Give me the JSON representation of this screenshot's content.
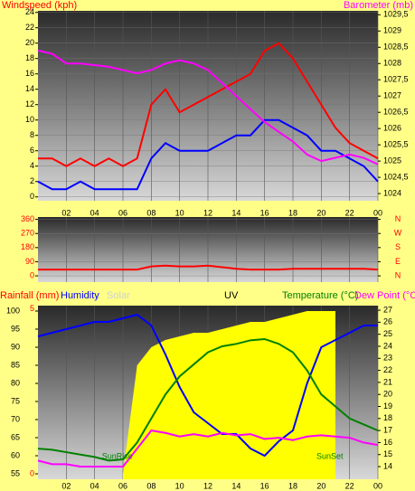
{
  "chart_data": [
    {
      "type": "line",
      "ylabel": "Windspeed (kph)",
      "y2label": "Barometer (mb)",
      "x": [
        0,
        1,
        2,
        3,
        4,
        5,
        6,
        7,
        8,
        9,
        10,
        11,
        12,
        13,
        14,
        15,
        16,
        17,
        18,
        19,
        20,
        21,
        22,
        23,
        24
      ],
      "xlim": [
        0,
        24
      ],
      "xticks": [
        {
          "value": 2,
          "label": "02"
        },
        {
          "value": 4,
          "label": "04"
        },
        {
          "value": 6,
          "label": "06"
        },
        {
          "value": 8,
          "label": "08"
        },
        10,
        12,
        14,
        16,
        18,
        20,
        22,
        {
          "value": 24,
          "label": "00"
        }
      ],
      "ylim": [
        -0.5,
        24.2
      ],
      "yticks": [
        0,
        2,
        4,
        6,
        8,
        10,
        12,
        14,
        16,
        18,
        20,
        22,
        24
      ],
      "y2lim": [
        1023.78,
        1029.62
      ],
      "y2ticks": [
        1024,
        {
          "value": 1024.5,
          "label": "1024,5"
        },
        1025,
        {
          "value": 1025.5,
          "label": "1025,5"
        },
        1026,
        {
          "value": 1026.5,
          "label": "1026,5"
        },
        1027,
        {
          "value": 1027.5,
          "label": "1027,5"
        },
        1028,
        {
          "value": 1028.5,
          "label": "1028,5"
        },
        1029,
        {
          "value": 1029.5,
          "label": "1029,5"
        }
      ],
      "grid": true,
      "series": [
        {
          "color": "#ff0000",
          "values": [
            5,
            5,
            4,
            5,
            4,
            5,
            4,
            5,
            12,
            14,
            11,
            12,
            13,
            14,
            15,
            16,
            19,
            20,
            18,
            15,
            12,
            9,
            7,
            6,
            5
          ]
        },
        {
          "color": "#0000ff",
          "values": [
            2,
            1,
            1,
            2,
            1,
            1,
            1,
            1,
            5,
            7,
            6,
            6,
            6,
            7,
            8,
            8,
            10,
            10,
            9,
            8,
            6,
            6,
            5,
            4,
            2
          ]
        },
        {
          "color": "#ff00ff",
          "axis": "y2",
          "values": [
            1028.4,
            1028.3,
            1028.0,
            1028.0,
            1027.95,
            1027.9,
            1027.8,
            1027.7,
            1027.8,
            1028.0,
            1028.1,
            1028.0,
            1027.8,
            1027.4,
            1027.0,
            1026.6,
            1026.2,
            1025.9,
            1025.6,
            1025.2,
            1025.0,
            1025.1,
            1025.2,
            1025.1,
            1024.9
          ]
        }
      ]
    },
    {
      "type": "line",
      "x": [
        0,
        1,
        2,
        3,
        4,
        5,
        6,
        7,
        8,
        9,
        10,
        11,
        12,
        13,
        14,
        15,
        16,
        17,
        18,
        19,
        20,
        21,
        22,
        23,
        24
      ],
      "xlim": [
        0,
        24
      ],
      "ylim": [
        -40,
        375
      ],
      "yticks": [
        0,
        90,
        180,
        270,
        360
      ],
      "y2ticks": [
        {
          "value": 360,
          "label": "N"
        },
        {
          "value": 270,
          "label": "W"
        },
        {
          "value": 180,
          "label": "S"
        },
        {
          "value": 90,
          "label": "E"
        },
        {
          "value": 0,
          "label": "N"
        }
      ],
      "grid": true,
      "series": [
        {
          "color": "#ff0000",
          "values": [
            40,
            40,
            40,
            40,
            40,
            40,
            40,
            40,
            60,
            65,
            60,
            60,
            65,
            55,
            45,
            40,
            40,
            40,
            45,
            45,
            45,
            45,
            45,
            45,
            40
          ]
        }
      ]
    },
    {
      "type": "line",
      "y3label": "Rainfall (mm)",
      "ylabel": "Humidity",
      "solar_label": "Solar",
      "uv_label": "UV",
      "y2label": "Temperature (°C)",
      "dew_label": "Dew Point (°C",
      "x": [
        0,
        1,
        2,
        3,
        4,
        5,
        6,
        7,
        8,
        9,
        10,
        11,
        12,
        13,
        14,
        15,
        16,
        17,
        18,
        19,
        20,
        21,
        22,
        23,
        24
      ],
      "xlim": [
        0,
        24
      ],
      "xticks": [
        {
          "value": 2,
          "label": "02"
        },
        {
          "value": 4,
          "label": "04"
        },
        {
          "value": 6,
          "label": "06"
        },
        {
          "value": 8,
          "label": "08"
        },
        10,
        12,
        14,
        16,
        18,
        20,
        22,
        {
          "value": 24,
          "label": "00"
        }
      ],
      "ylim": [
        53.5,
        101.5
      ],
      "yticks": [
        55,
        60,
        65,
        70,
        75,
        80,
        85,
        90,
        95,
        100
      ],
      "y3lim": [
        -0.16,
        5.1
      ],
      "y3ticks": [
        0,
        5
      ],
      "y2lim": [
        12.95,
        27.38
      ],
      "y2ticks": [
        14,
        15,
        16,
        17,
        18,
        19,
        20,
        21,
        22,
        23,
        24,
        25,
        26,
        27
      ],
      "grid": true,
      "annotations": [
        {
          "text": "SunRise",
          "x": 5.6
        },
        {
          "text": "SunSet",
          "x": 20.6
        }
      ],
      "series": [
        {
          "color": "#ffff00",
          "fill": true,
          "values": [
            null,
            null,
            null,
            null,
            null,
            null,
            55,
            85,
            90,
            92,
            93,
            94,
            94,
            95,
            96,
            97,
            97,
            98,
            99,
            100,
            100,
            100,
            null,
            null,
            null
          ]
        },
        {
          "color": "#0000ff",
          "values": [
            93,
            94,
            95,
            96,
            97,
            97,
            98,
            99,
            96,
            88,
            79,
            72,
            69,
            66,
            66,
            62,
            60,
            64,
            67,
            80,
            90,
            92,
            94,
            96,
            96
          ]
        },
        {
          "color": "#008000",
          "axis": "y2",
          "values": [
            15.5,
            15.4,
            15.2,
            15.0,
            14.8,
            14.5,
            14.6,
            16,
            18,
            20,
            21.5,
            22.5,
            23.5,
            24,
            24.2,
            24.5,
            24.6,
            24.2,
            23.5,
            22,
            20,
            19,
            18,
            17.5,
            17
          ]
        },
        {
          "color": "#ff00ff",
          "axis": "y2",
          "values": [
            14.5,
            14.2,
            14.2,
            14,
            14,
            14,
            14,
            15.5,
            17,
            16.8,
            16.5,
            16.7,
            16.5,
            16.8,
            16.6,
            16.7,
            16.3,
            16.4,
            16.2,
            16.5,
            16.6,
            16.5,
            16.4,
            16,
            15.8
          ]
        }
      ]
    }
  ]
}
